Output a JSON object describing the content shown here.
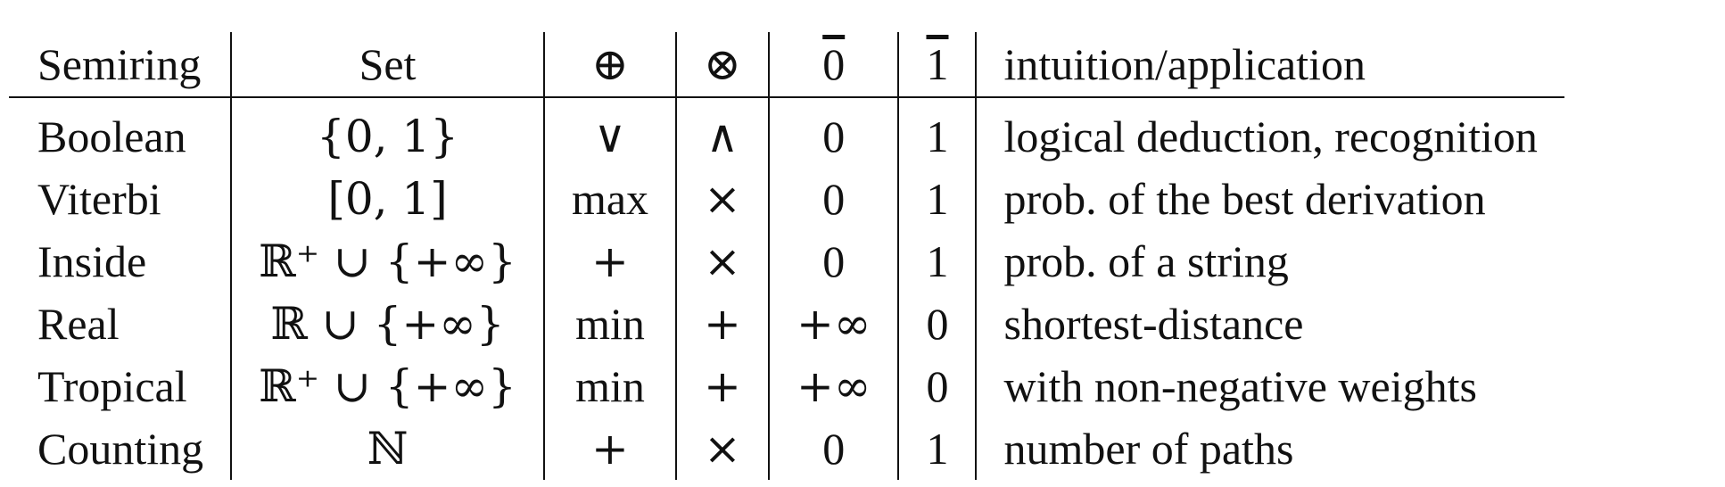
{
  "table": {
    "headers": {
      "semiring": "Semiring",
      "set": "Set",
      "plus": "⊕",
      "times": "⊗",
      "zero": "0",
      "one": "1",
      "intuition": "intuition/application"
    },
    "rows": [
      {
        "semiring": "Boolean",
        "set": "{0, 1}",
        "plus": "∨",
        "times": "∧",
        "zero": "0",
        "one": "1",
        "intuition": "logical deduction, recognition"
      },
      {
        "semiring": "Viterbi",
        "set": "[0, 1]",
        "plus": "max",
        "times": "×",
        "zero": "0",
        "one": "1",
        "intuition": "prob. of the best derivation"
      },
      {
        "semiring": "Inside",
        "set": "ℝ⁺ ∪ {+∞}",
        "plus": "+",
        "times": "×",
        "zero": "0",
        "one": "1",
        "intuition": "prob. of a string"
      },
      {
        "semiring": "Real",
        "set": "ℝ ∪ {+∞}",
        "plus": "min",
        "times": "+",
        "zero": "+∞",
        "one": "0",
        "intuition": "shortest-distance"
      },
      {
        "semiring": "Tropical",
        "set": "ℝ⁺ ∪ {+∞}",
        "plus": "min",
        "times": "+",
        "zero": "+∞",
        "one": "0",
        "intuition": "with non-negative weights"
      },
      {
        "semiring": "Counting",
        "set": "ℕ",
        "plus": "+",
        "times": "×",
        "zero": "0",
        "one": "1",
        "intuition": "number of paths"
      }
    ]
  }
}
